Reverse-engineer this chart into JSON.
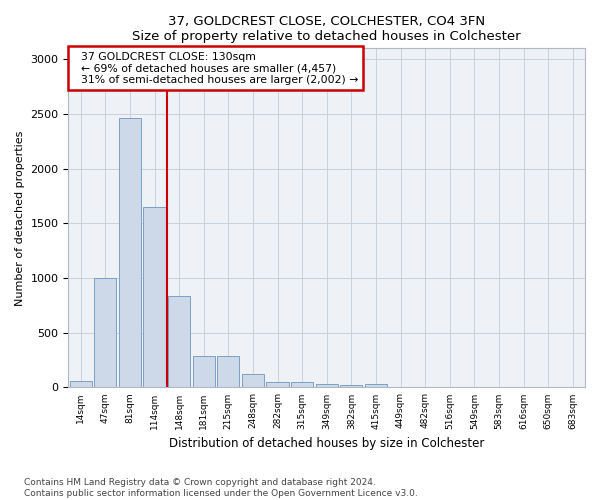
{
  "title": "37, GOLDCREST CLOSE, COLCHESTER, CO4 3FN",
  "subtitle": "Size of property relative to detached houses in Colchester",
  "xlabel": "Distribution of detached houses by size in Colchester",
  "ylabel": "Number of detached properties",
  "categories": [
    "14sqm",
    "47sqm",
    "81sqm",
    "114sqm",
    "148sqm",
    "181sqm",
    "215sqm",
    "248sqm",
    "282sqm",
    "315sqm",
    "349sqm",
    "382sqm",
    "415sqm",
    "449sqm",
    "482sqm",
    "516sqm",
    "549sqm",
    "583sqm",
    "616sqm",
    "650sqm",
    "683sqm"
  ],
  "values": [
    55,
    1000,
    2460,
    1650,
    840,
    290,
    290,
    120,
    50,
    50,
    30,
    20,
    30,
    0,
    0,
    0,
    0,
    0,
    0,
    0,
    0
  ],
  "bar_color": "#cdd9e8",
  "bar_edge_color": "#7aa0c4",
  "vline_x": 3.5,
  "annotation_text": "  37 GOLDCREST CLOSE: 130sqm\n  ← 69% of detached houses are smaller (4,457)\n  31% of semi-detached houses are larger (2,002) →",
  "annotation_box_color": "#ffffff",
  "annotation_box_edge_color": "#cc0000",
  "vline_color": "#cc0000",
  "ylim": [
    0,
    3100
  ],
  "yticks": [
    0,
    500,
    1000,
    1500,
    2000,
    2500,
    3000
  ],
  "footer_line1": "Contains HM Land Registry data © Crown copyright and database right 2024.",
  "footer_line2": "Contains public sector information licensed under the Open Government Licence v3.0.",
  "plot_bg_color": "#eef2f7"
}
